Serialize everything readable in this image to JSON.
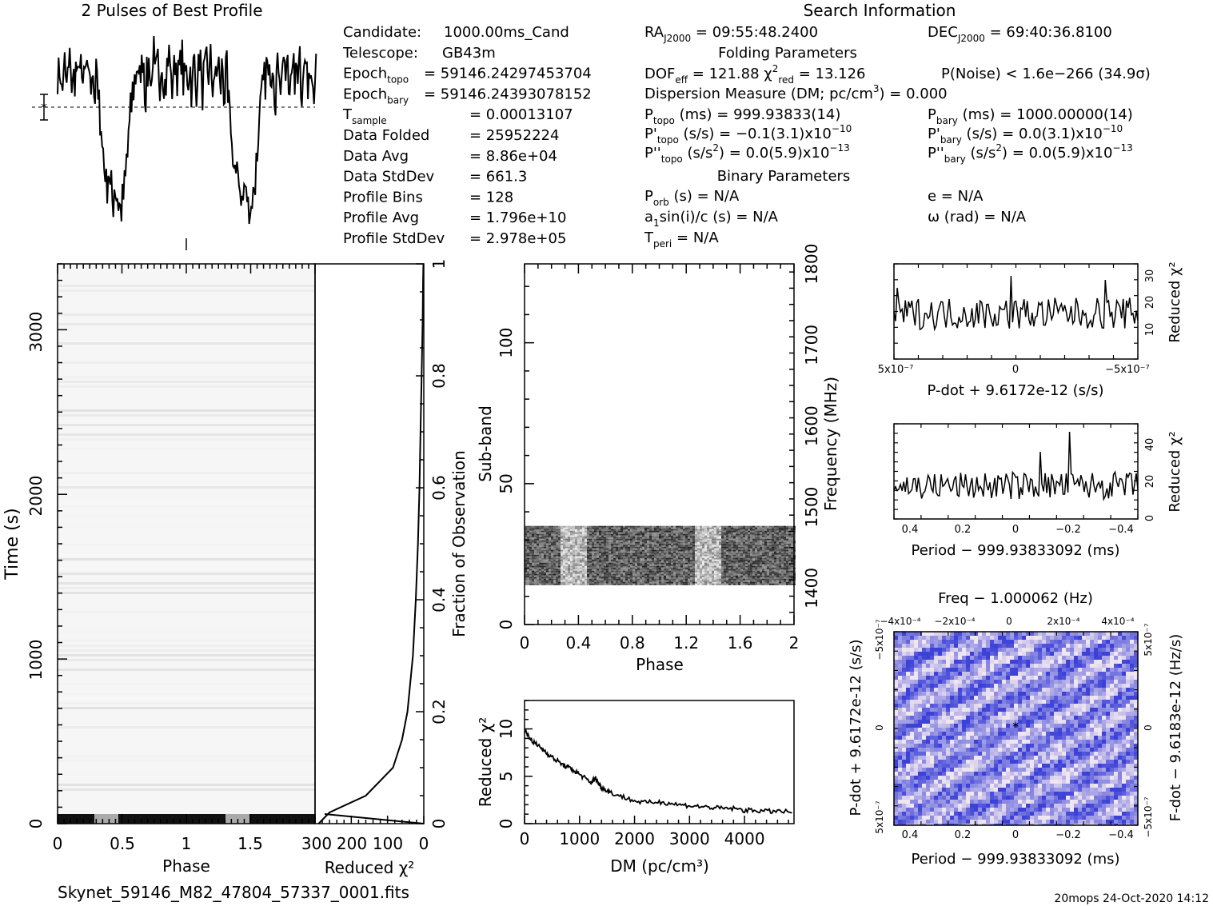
{
  "title": "2 Pulses of Best Profile",
  "search_info_title": "Search Information",
  "folding_title": "Folding Parameters",
  "binary_title": "Binary Parameters",
  "footer_file": "Skynet_59146_M82_47804_57337_0001.fits",
  "footer_stamp": "20mops  24-Oct-2020 14:12",
  "info_left": [
    {
      "label": "Candidate:",
      "value": "1000.00ms_Cand"
    },
    {
      "label": "Telescope:",
      "value": "GB43m"
    },
    {
      "label": "Epoch",
      "sub": "topo",
      "value": "= 59146.24297453704"
    },
    {
      "label": "Epoch",
      "sub": "bary",
      "value": "= 59146.24393078152"
    },
    {
      "label": "T",
      "sub": "sample",
      "value": "=   0.00013107"
    },
    {
      "label": "Data Folded",
      "value": "=   25952224"
    },
    {
      "label": "Data Avg",
      "value": "=   8.86e+04"
    },
    {
      "label": "Data StdDev",
      "value": "=   661.3"
    },
    {
      "label": "Profile Bins",
      "value": "=   128"
    },
    {
      "label": "Profile Avg",
      "value": "=   1.796e+10"
    },
    {
      "label": "Profile StdDev",
      "value": "=   2.978e+05"
    }
  ],
  "info_mid": {
    "ra": "09:55:48.2400",
    "dof": "121.88",
    "chi2": "13.126",
    "dm": "= 0.000",
    "ptopo": "999.93833(14)",
    "pdtopo": "−0.1(3.1)x10",
    "pdtopo_exp": "−10",
    "pddtopo": "0.0(5.9)x10",
    "pddtopo_exp": "−13",
    "porb": "N/A",
    "a1sini": "N/A",
    "tperi": "N/A"
  },
  "info_right": {
    "dec": "69:40:36.8100",
    "pnoise": "P(Noise) < 1.6e−266   (34.9σ)",
    "pbary": "1000.00000(14)",
    "pdbary": "0.0(3.1)x10",
    "pdbary_exp": "−10",
    "pddbary": "0.0(5.9)x10",
    "pddbary_exp": "−13",
    "e": "N/A",
    "omega": "N/A"
  },
  "colors": {
    "foreground": "#000000",
    "background": "#ffffff",
    "map_low": "#3b3fd8",
    "map_high": "#f0e4f0"
  },
  "chart_data": [
    {
      "type": "line",
      "name": "pulse-profile",
      "title": "2 Pulses of Best Profile",
      "x_range": [
        0,
        2
      ],
      "note_values": "profile intensity (normalized); two identical pulses",
      "profile": [
        0.78,
        0.82,
        0.7,
        0.85,
        0.74,
        0.8,
        0.88,
        0.72,
        0.79,
        0.83,
        0.76,
        0.9,
        0.7,
        0.81,
        0.77,
        0.86,
        0.73,
        0.84,
        0.69,
        0.8,
        0.62,
        0.55,
        0.4,
        0.3,
        0.22,
        0.28,
        0.18,
        0.12,
        0.2,
        0.15,
        0.1,
        0.08,
        0.14,
        0.22,
        0.35,
        0.5,
        0.62,
        0.72,
        0.78,
        0.84,
        0.75,
        0.82,
        0.88,
        0.7,
        0.8,
        0.86,
        0.74,
        0.9,
        0.78,
        0.83,
        0.71,
        0.87,
        0.79,
        0.75,
        0.84,
        0.92,
        0.73,
        0.8,
        0.86,
        0.77,
        0.82,
        0.88,
        0.74,
        0.8
      ]
    },
    {
      "type": "heatmap",
      "name": "time-phase",
      "xlabel": "Phase",
      "ylabel": "Time (s)",
      "xlim": [
        0,
        2
      ],
      "ylim": [
        0,
        3400
      ],
      "x_ticks": [
        "0",
        "0.5",
        "1",
        "1.5"
      ],
      "y_ticks": [
        "0",
        "1000",
        "2000",
        "3000"
      ],
      "secondary_xlabel": "Reduced χ²",
      "secondary_x_ticks": [
        "300",
        "200",
        "100",
        "0"
      ],
      "secondary_ylabel": "Fraction of Observation",
      "secondary_y_ticks": [
        "0",
        "0.2",
        "0.4",
        "0.6",
        "0.8",
        "1"
      ],
      "chi2_curve": {
        "fraction": [
          0,
          0.02,
          0.05,
          0.1,
          0.15,
          0.2,
          0.3,
          0.4,
          0.5,
          0.6,
          0.7,
          0.8,
          0.9,
          0.97,
          1.0
        ],
        "chi2": [
          290,
          260,
          160,
          85,
          60,
          45,
          30,
          22,
          16,
          12,
          9,
          6,
          3,
          2,
          1
        ]
      }
    },
    {
      "type": "heatmap",
      "name": "subband-phase",
      "xlabel": "Phase",
      "ylabel": "Sub-band",
      "secondary_ylabel": "Frequency (MHz)",
      "xlim": [
        0,
        2
      ],
      "ylim": [
        0,
        128
      ],
      "x_ticks": [
        "0",
        "0.4",
        "0.8",
        "1.2",
        "1.6",
        "2"
      ],
      "y_ticks": [
        "0",
        "50",
        "100"
      ],
      "secondary_y_ticks": [
        "1400",
        "1500",
        "1600",
        "1700",
        "1800"
      ],
      "active_subbands": [
        14,
        35
      ]
    },
    {
      "type": "line",
      "name": "dm-chi2",
      "xlabel": "DM (pc/cm³)",
      "ylabel": "Reduced χ²",
      "xlim": [
        0,
        4900
      ],
      "ylim": [
        0,
        13
      ],
      "x_ticks": [
        "0",
        "1000",
        "2000",
        "3000",
        "4000"
      ],
      "y_ticks": [
        "0",
        "5",
        "10"
      ],
      "x": [
        0,
        100,
        200,
        300,
        400,
        500,
        600,
        700,
        800,
        900,
        1000,
        1100,
        1200,
        1250,
        1300,
        1350,
        1400,
        1500,
        1600,
        1800,
        2000,
        2200,
        2400,
        2600,
        2800,
        3000,
        3200,
        3400,
        3600,
        3800,
        4000,
        4200,
        4400,
        4600,
        4900
      ],
      "y": [
        9.8,
        9.0,
        8.4,
        8.0,
        7.5,
        7.0,
        6.6,
        6.2,
        5.9,
        5.6,
        5.2,
        4.8,
        4.3,
        4.6,
        4.8,
        4.2,
        3.8,
        3.5,
        3.2,
        2.8,
        2.4,
        2.2,
        2.3,
        2.2,
        2.0,
        1.9,
        1.8,
        1.7,
        1.6,
        1.6,
        1.4,
        1.4,
        1.3,
        1.3,
        1.2
      ]
    },
    {
      "type": "line",
      "name": "pdot-chi2",
      "xlabel": "P-dot + 9.6172e-12 (s/s)",
      "ylabel": "Reduced χ²",
      "xlim": [
        5e-07,
        -5e-07
      ],
      "ylim": [
        10,
        35
      ],
      "x_ticks": [
        "5x10⁻⁷",
        "0",
        "−5x10⁻⁷"
      ],
      "y_ticks": [
        "10",
        "20",
        "30"
      ]
    },
    {
      "type": "line",
      "name": "period-chi2",
      "xlabel": "Period − 999.93833092 (ms)",
      "ylabel": "Reduced χ²",
      "xlim": [
        0.45,
        -0.45
      ],
      "ylim": [
        0,
        50
      ],
      "x_ticks": [
        "0.4",
        "0.2",
        "0",
        "−0.2",
        "−0.4"
      ],
      "y_ticks": [
        "0",
        "20",
        "40"
      ]
    },
    {
      "type": "heatmap",
      "name": "period-pdot",
      "title": "Freq − 1.000062 (Hz)",
      "xlabel": "Period − 999.93833092 (ms)",
      "ylabel": "P-dot + 9.6172e-12 (s/s)",
      "secondary_ylabel": "F-dot − 9.6183e-12 (Hz/s)",
      "x_ticks": [
        "0.4",
        "0.2",
        "0",
        "−0.2",
        "−0.4"
      ],
      "top_ticks": [
        "−4x10⁻⁴",
        "−2x10⁻⁴",
        "0",
        "2x10⁻⁴",
        "4x10⁻⁴"
      ],
      "y_ticks": [
        "−5x10⁻⁷",
        "0",
        "5x10⁻⁷"
      ],
      "right_ticks": [
        "5x10⁻⁷",
        "0",
        "−5x10⁻⁷"
      ]
    }
  ]
}
